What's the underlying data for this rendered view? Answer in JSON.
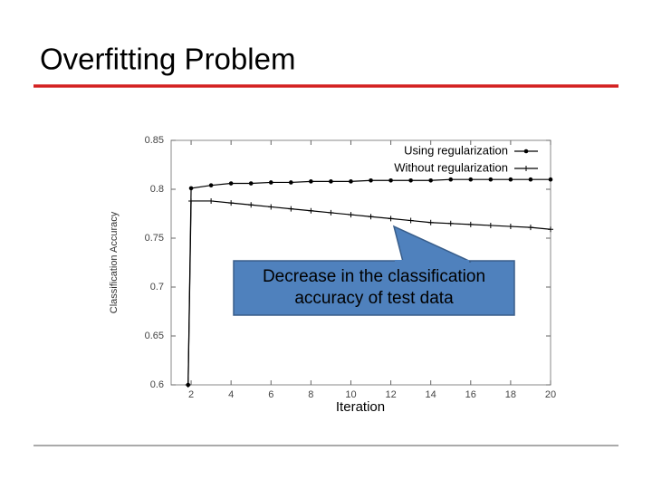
{
  "slide": {
    "title": "Overfitting Problem"
  },
  "chart_data": {
    "type": "line",
    "x_label": "Iteration",
    "y_label": "Classification Accuracy",
    "annotation": "Decrease in the classification accuracy of test data",
    "x": [
      1.85,
      2,
      3,
      4,
      5,
      6,
      7,
      8,
      9,
      10,
      11,
      12,
      13,
      14,
      15,
      16,
      17,
      18,
      19,
      20
    ],
    "series": [
      {
        "name": "Using regularization",
        "color": "#000000",
        "marker": "circle",
        "values": [
          0.6,
          0.801,
          0.804,
          0.806,
          0.806,
          0.807,
          0.807,
          0.808,
          0.808,
          0.808,
          0.809,
          0.809,
          0.809,
          0.809,
          0.81,
          0.81,
          0.81,
          0.81,
          0.81,
          0.81
        ]
      },
      {
        "name": "Without regularization",
        "color": "#000000",
        "marker": "plus",
        "values": [
          0.6,
          0.788,
          0.788,
          0.786,
          0.784,
          0.782,
          0.78,
          0.778,
          0.776,
          0.774,
          0.772,
          0.77,
          0.768,
          0.766,
          0.765,
          0.764,
          0.763,
          0.762,
          0.761,
          0.759
        ]
      }
    ],
    "xlim": [
      1,
      20
    ],
    "ylim": [
      0.6,
      0.85
    ],
    "xticks": [
      2,
      4,
      6,
      8,
      10,
      12,
      14,
      16,
      18,
      20
    ],
    "yticks": [
      0.6,
      0.65,
      0.7,
      0.75,
      0.8,
      0.85
    ],
    "legend": "upper right"
  }
}
